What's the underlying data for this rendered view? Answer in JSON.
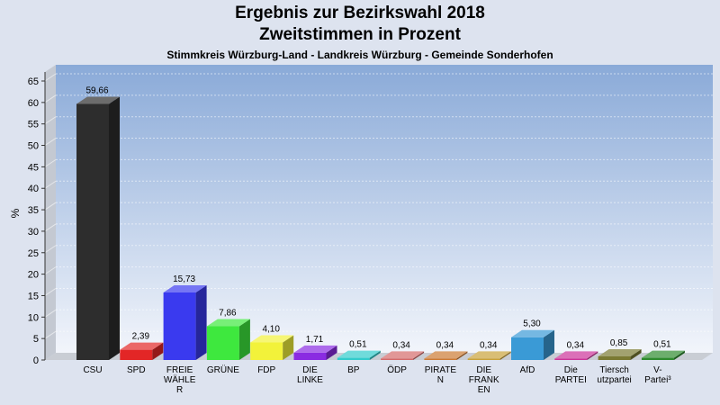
{
  "chart_data": {
    "type": "bar",
    "title": "Ergebnis zur Bezirkswahl 2018",
    "subtitle": "Zweitstimmen in Prozent",
    "subtitle2": "Stimmkreis Würzburg-Land - Landkreis Würzburg - Gemeinde Sonderhofen",
    "ylabel": "%",
    "xlabel": "",
    "ylim": [
      0,
      65
    ],
    "yticks": [
      0,
      5,
      10,
      15,
      20,
      25,
      30,
      35,
      40,
      45,
      50,
      55,
      60,
      65
    ],
    "grid": true,
    "categories": [
      [
        "CSU"
      ],
      [
        "SPD"
      ],
      [
        "FREIE",
        "WÄHLE",
        "R"
      ],
      [
        "GRÜNE"
      ],
      [
        "FDP"
      ],
      [
        "DIE",
        "LINKE"
      ],
      [
        "BP"
      ],
      [
        "ÖDP"
      ],
      [
        "PIRATE",
        "N"
      ],
      [
        "DIE",
        "FRANK",
        "EN"
      ],
      [
        "AfD"
      ],
      [
        "Die",
        "PARTEI"
      ],
      [
        "Tiersch",
        "utzpartei"
      ],
      [
        "V-",
        "Partei³"
      ]
    ],
    "values": [
      59.66,
      2.39,
      15.73,
      7.86,
      4.1,
      1.71,
      0.51,
      0.34,
      0.34,
      0.34,
      5.3,
      0.34,
      0.85,
      0.51
    ],
    "value_labels": [
      "59,66",
      "2,39",
      "15,73",
      "7,86",
      "4,10",
      "1,71",
      "0,51",
      "0,34",
      "0,34",
      "0,34",
      "5,30",
      "0,34",
      "0,85",
      "0,51"
    ],
    "colors": [
      "#2d2d2d",
      "#e32626",
      "#3a3aef",
      "#3ee83e",
      "#f2f23a",
      "#8a2be2",
      "#33cccc",
      "#d46a6a",
      "#cc7a33",
      "#c9a23a",
      "#3a9ad6",
      "#cc3399",
      "#7a7a33",
      "#2e8b2e"
    ]
  }
}
